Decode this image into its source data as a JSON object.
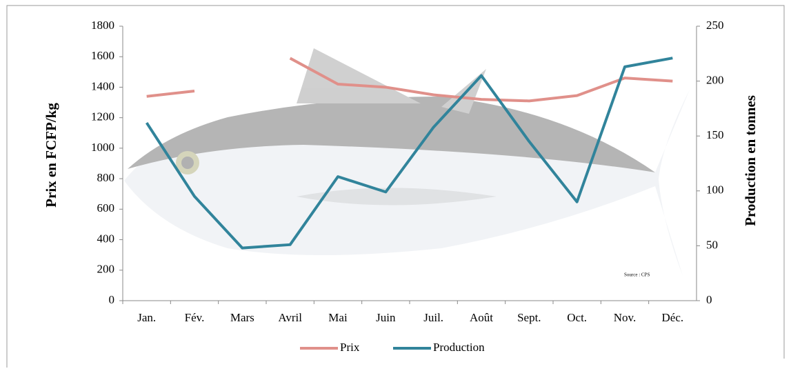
{
  "chart_data": {
    "type": "line",
    "categories": [
      "Jan.",
      "Fév.",
      "Mars",
      "Avril",
      "Mai",
      "Juin",
      "Juil.",
      "Août",
      "Sept.",
      "Oct.",
      "Nov.",
      "Déc."
    ],
    "series": [
      {
        "name": "Prix",
        "color": "#e0908a",
        "values": [
          1340,
          1375,
          null,
          1590,
          1420,
          1400,
          1350,
          1320,
          1310,
          1345,
          1460,
          1440
        ]
      },
      {
        "name": "Production",
        "color": "#31849b",
        "axis": "y2",
        "values": [
          162,
          95,
          48,
          51,
          113,
          99,
          158,
          205,
          145,
          90,
          213,
          221
        ]
      }
    ],
    "ylabel": "Prix en FCFP/kg",
    "y2label": "Production en tonnes",
    "ylim": [
      0,
      1800
    ],
    "yticks": [
      0,
      200,
      400,
      600,
      800,
      1000,
      1200,
      1400,
      1600,
      1800
    ],
    "y2lim": [
      0,
      250
    ],
    "y2ticks": [
      0,
      50,
      100,
      150,
      200,
      250
    ],
    "legend": "bottom",
    "annotations": [
      "Source : CPS"
    ]
  }
}
